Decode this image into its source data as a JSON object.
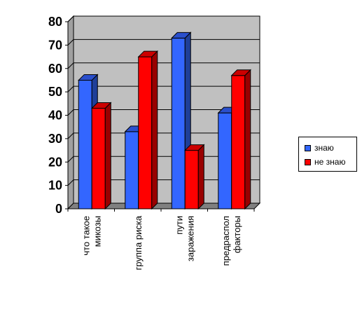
{
  "chart_data": {
    "type": "bar",
    "categories": [
      [
        "что такое",
        "микозы"
      ],
      [
        "группа риска"
      ],
      [
        "пути",
        "заражения"
      ],
      [
        "предраспол",
        "факторы"
      ]
    ],
    "series": [
      {
        "name": "знаю",
        "values": [
          55,
          33,
          73,
          41
        ],
        "color": "#3366ff",
        "side": "#1f3f99",
        "top": "#2a4fcc"
      },
      {
        "name": "не знаю",
        "values": [
          43,
          65,
          25,
          57
        ],
        "color": "#ff0000",
        "side": "#990000",
        "top": "#cc0000"
      }
    ],
    "yticks": [
      "0",
      "10",
      "20",
      "30",
      "40",
      "50",
      "60",
      "70",
      "80"
    ],
    "ylim": [
      0,
      80
    ],
    "grid": true,
    "legend": "right",
    "wall_color": "#c0c0c0"
  }
}
